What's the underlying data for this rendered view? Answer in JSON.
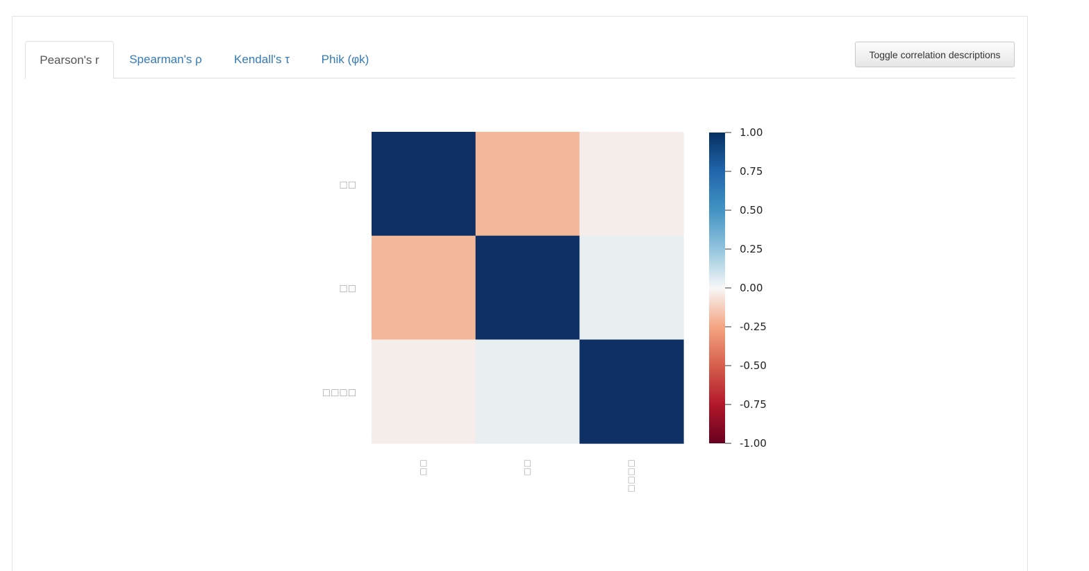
{
  "tabs": [
    {
      "label": "Pearson's r",
      "active": true
    },
    {
      "label": "Spearman's ρ",
      "active": false
    },
    {
      "label": "Kendall's τ",
      "active": false
    },
    {
      "label": "Phik (φk)",
      "active": false
    }
  ],
  "toggle_button": {
    "label": "Toggle correlation descriptions"
  },
  "chart_data": {
    "type": "heatmap",
    "title": "",
    "row_labels": [
      "□□",
      "□□",
      "□□□□"
    ],
    "col_labels": [
      "□□",
      "□□",
      "□□□□"
    ],
    "values": [
      [
        1.0,
        -0.25,
        -0.03
      ],
      [
        -0.25,
        1.0,
        0.03
      ],
      [
        -0.03,
        0.03,
        1.0
      ]
    ],
    "colorbar": {
      "colormap": "RdBu",
      "range": [
        -1.0,
        1.0
      ],
      "ticks": [
        "1.00",
        "0.75",
        "0.50",
        "0.25",
        "0.00",
        "-0.25",
        "-0.50",
        "-0.75",
        "-1.00"
      ]
    },
    "colors": {
      "max_positive": "#0e3064",
      "moderate_negative": "#f2b899",
      "near_zero_negative": "#f5f1ef",
      "near_zero_positive": "#f2f3f5",
      "axis_label": "#a8a8a8",
      "tick_label": "#222222"
    }
  }
}
